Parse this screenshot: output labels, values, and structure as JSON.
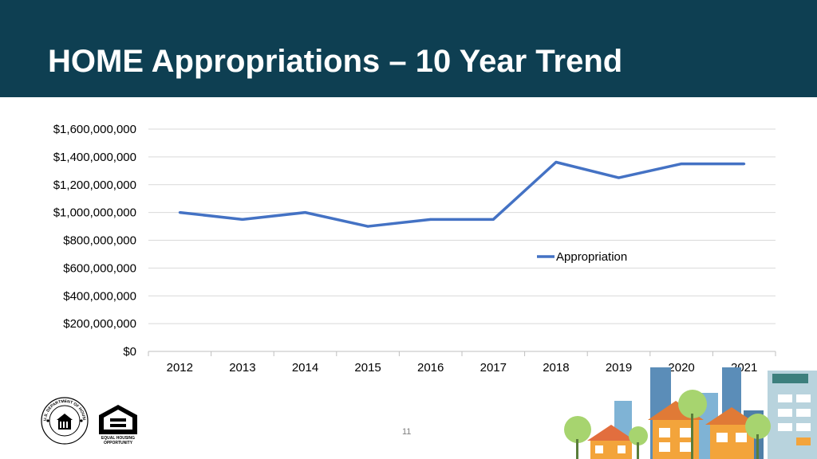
{
  "slide": {
    "title": "HOME Appropriations – 10 Year Trend",
    "page_number": "11",
    "eho_caption_line1": "EQUAL HOUSING",
    "eho_caption_line2": "OPPORTUNITY",
    "hud_seal_text": "U.S. DEPARTMENT OF HOUSING AND URBAN DEVELOPMENT"
  },
  "colors": {
    "header_bg": "#0e3f52",
    "series_line": "#4472c4",
    "gridline": "#d9d9d9"
  },
  "chart_data": {
    "type": "line",
    "x": [
      "2012",
      "2013",
      "2014",
      "2015",
      "2016",
      "2017",
      "2018",
      "2019",
      "2020",
      "2021"
    ],
    "series": [
      {
        "name": "Appropriation",
        "values": [
          1000000000,
          950000000,
          1000000000,
          900000000,
          950000000,
          950000000,
          1362000000,
          1250000000,
          1350000000,
          1350000000
        ]
      }
    ],
    "ylim": [
      0,
      1600000000
    ],
    "yticks": [
      "$0",
      "$200,000,000",
      "$400,000,000",
      "$600,000,000",
      "$800,000,000",
      "$1,000,000,000",
      "$1,200,000,000",
      "$1,400,000,000",
      "$1,600,000,000"
    ],
    "title": "",
    "xlabel": "",
    "ylabel": "",
    "grid": true,
    "legend": "right"
  }
}
